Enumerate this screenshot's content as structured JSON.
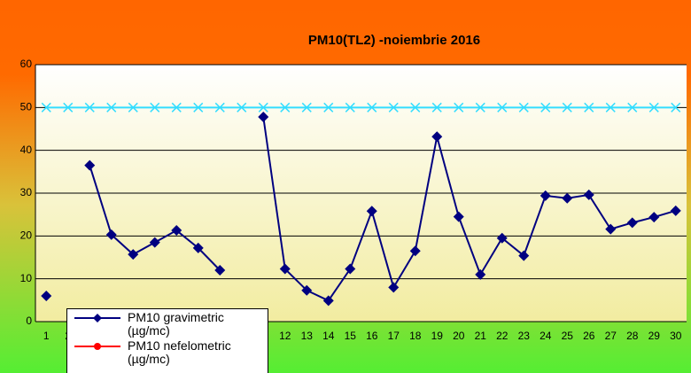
{
  "chart_data": {
    "type": "line",
    "title": "PM10(TL2) -noiembrie 2016",
    "categories": [
      "1",
      "2",
      "3",
      "4",
      "5",
      "6",
      "7",
      "8",
      "9",
      "10",
      "11",
      "12",
      "13",
      "14",
      "15",
      "16",
      "17",
      "18",
      "19",
      "20",
      "21",
      "22",
      "23",
      "24",
      "25",
      "26",
      "27",
      "28",
      "29",
      "30"
    ],
    "series": [
      {
        "name": "PM10    gravimetric (µg/mc)",
        "color": "#000080",
        "marker": "diamond",
        "values": [
          6,
          null,
          36.5,
          20.3,
          15.7,
          18.5,
          21.3,
          17.2,
          12,
          null,
          47.8,
          12.3,
          7.3,
          4.9,
          12.3,
          25.8,
          8,
          16.5,
          43.2,
          24.5,
          11,
          19.5,
          15.4,
          29.4,
          28.8,
          29.6,
          21.6,
          23.1,
          24.4,
          25.9
        ]
      },
      {
        "name": "PM10 nefelometric (µg/mc)",
        "color": "#ff0000",
        "marker": "circle",
        "values": [
          null,
          null,
          null,
          null,
          null,
          null,
          null,
          null,
          null,
          null,
          null,
          null,
          null,
          null,
          null,
          null,
          null,
          null,
          null,
          null,
          null,
          null,
          null,
          null,
          null,
          null,
          null,
          null,
          null,
          null
        ]
      },
      {
        "color": "#33ddff",
        "marker": "x",
        "values": [
          50,
          50,
          50,
          50,
          50,
          50,
          50,
          50,
          50,
          50,
          50,
          50,
          50,
          50,
          50,
          50,
          50,
          50,
          50,
          50,
          50,
          50,
          50,
          50,
          50,
          50,
          50,
          50,
          50,
          50
        ]
      }
    ],
    "ylim": [
      0,
      60
    ],
    "yticks": [
      0,
      10,
      20,
      30,
      40,
      50,
      60
    ],
    "grid": true
  }
}
